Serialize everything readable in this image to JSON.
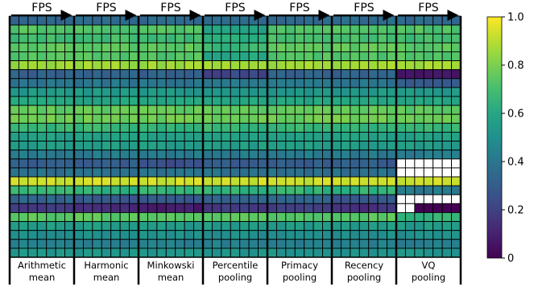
{
  "chart_data": {
    "type": "heatmap",
    "title": "",
    "xlabel": "",
    "ylabel": "",
    "group_header_label": "FPS",
    "groups": [
      {
        "name": "Arithmetic\nmean",
        "line1": "Arithmetic",
        "line2": "mean"
      },
      {
        "name": "Harmonic\nmean",
        "line1": "Harmonic",
        "line2": "mean"
      },
      {
        "name": "Minkowski\nmean",
        "line1": "Minkowski",
        "line2": "mean"
      },
      {
        "name": "Percentile\npooling",
        "line1": "Percentile",
        "line2": "pooling"
      },
      {
        "name": "Primacy\npooling",
        "line1": "Primacy",
        "line2": "pooling"
      },
      {
        "name": "Recency\npooling",
        "line1": "Recency",
        "line2": "pooling"
      },
      {
        "name": "VQ\npooling",
        "line1": "VQ",
        "line2": "pooling"
      }
    ],
    "columns_per_group": 7,
    "rows": 27,
    "colormap": "viridis",
    "colorbar": {
      "min": 0,
      "max": 1.0,
      "ticks": [
        0,
        0.2,
        0.4,
        0.6,
        0.8,
        1.0
      ],
      "tick_labels": [
        "0",
        "0.2",
        "0.4",
        "0.6",
        "0.8",
        "1.0"
      ]
    },
    "row_base_values": [
      0.35,
      0.73,
      0.7,
      0.75,
      0.73,
      0.86,
      0.32,
      0.4,
      0.54,
      0.6,
      0.76,
      0.78,
      0.67,
      0.58,
      0.56,
      0.42,
      0.3,
      0.38,
      0.93,
      0.66,
      0.33,
      0.18,
      0.75,
      0.55,
      0.5,
      0.44,
      0.52
    ],
    "group_adjustments": {
      "Harmonic\nmean": {
        "21": -0.06,
        "20": -0.04
      },
      "Minkowski\nmean": {
        "21": -0.1,
        "16": -0.05,
        "20": -0.05
      },
      "Percentile\npooling": {
        "1": -0.15,
        "2": -0.05,
        "3": -0.08,
        "4": -0.12,
        "6": -0.1
      },
      "Recency\npooling": {
        "20": -0.06,
        "21": -0.03
      },
      "VQ\npooling": {
        "6": -0.25,
        "7": -0.1,
        "16": -0.4,
        "17": -0.4,
        "19": -0.25,
        "20": -0.35,
        "21": -0.3,
        "22": -0.1
      }
    },
    "missing_cells": {
      "VQ\npooling": [
        [
          16,
          0
        ],
        [
          16,
          1
        ],
        [
          16,
          2
        ],
        [
          16,
          3
        ],
        [
          16,
          4
        ],
        [
          16,
          5
        ],
        [
          16,
          6
        ],
        [
          17,
          0
        ],
        [
          17,
          1
        ],
        [
          17,
          2
        ],
        [
          17,
          3
        ],
        [
          17,
          4
        ],
        [
          17,
          5
        ],
        [
          17,
          6
        ],
        [
          20,
          0
        ],
        [
          20,
          1
        ],
        [
          20,
          2
        ],
        [
          20,
          3
        ],
        [
          20,
          4
        ],
        [
          20,
          5
        ],
        [
          20,
          6
        ],
        [
          21,
          0
        ],
        [
          21,
          1
        ]
      ]
    },
    "grid": true,
    "legend": "colorbar-right"
  }
}
